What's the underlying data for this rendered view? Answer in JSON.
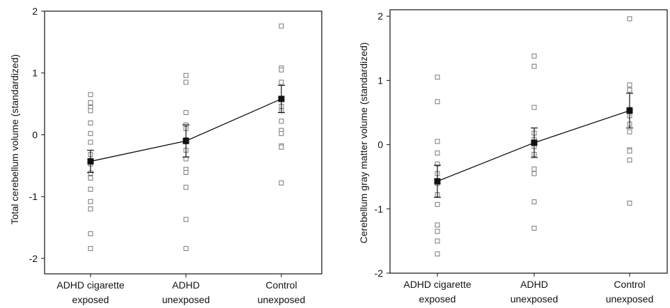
{
  "chart_data": [
    {
      "type": "scatter",
      "ylabel": "Total cerebellum volume (standardized)",
      "xlabel": "",
      "ylim": [
        -2.25,
        2
      ],
      "yticks": [
        "-2",
        "-1",
        "0",
        "1",
        "2"
      ],
      "categories": [
        {
          "line1": "ADHD cigarette",
          "line2": "exposed"
        },
        {
          "line1": "ADHD",
          "line2": "unexposed"
        },
        {
          "line1": "Control",
          "line2": "unexposed"
        }
      ],
      "points": [
        [
          0.65,
          0.52,
          0.44,
          0.39,
          0.19,
          0.02,
          -0.12,
          -0.32,
          -0.47,
          -0.62,
          -0.7,
          -0.88,
          -1.08,
          -1.2,
          -1.6,
          -1.84
        ],
        [
          0.96,
          0.85,
          0.36,
          0.16,
          0.1,
          -0.08,
          -0.25,
          -0.39,
          -0.56,
          -0.61,
          -0.85,
          -1.37,
          -1.84
        ],
        [
          1.76,
          1.08,
          1.05,
          0.85,
          0.58,
          0.46,
          0.39,
          0.22,
          0.07,
          0.02,
          -0.18,
          -0.2,
          -0.78
        ]
      ],
      "means": [
        -0.43,
        -0.1,
        0.58
      ],
      "sem": [
        0.18,
        0.26,
        0.22
      ],
      "grid": false
    },
    {
      "type": "scatter",
      "ylabel": "Cerebellum gray matter volume (standardized)",
      "xlabel": "",
      "ylim": [
        -2,
        2.1
      ],
      "yticks": [
        "-2",
        "-1",
        "0",
        "1",
        "2"
      ],
      "categories": [
        {
          "line1": "ADHD cigarette",
          "line2": "exposed"
        },
        {
          "line1": "ADHD",
          "line2": "unexposed"
        },
        {
          "line1": "Control",
          "line2": "unexposed"
        }
      ],
      "points": [
        [
          1.05,
          0.67,
          0.05,
          -0.13,
          -0.3,
          -0.45,
          -0.6,
          -0.78,
          -0.93,
          -1.25,
          -1.35,
          -1.5,
          -1.7
        ],
        [
          1.38,
          1.22,
          0.58,
          0.18,
          0.08,
          -0.03,
          -0.15,
          -0.38,
          -0.45,
          -0.89,
          -1.3
        ],
        [
          1.96,
          0.93,
          0.85,
          0.55,
          0.45,
          0.32,
          0.2,
          -0.08,
          -0.1,
          -0.24,
          -0.91
        ]
      ],
      "means": [
        -0.57,
        0.03,
        0.53
      ],
      "sem": [
        0.25,
        0.23,
        0.27
      ],
      "grid": false
    }
  ]
}
